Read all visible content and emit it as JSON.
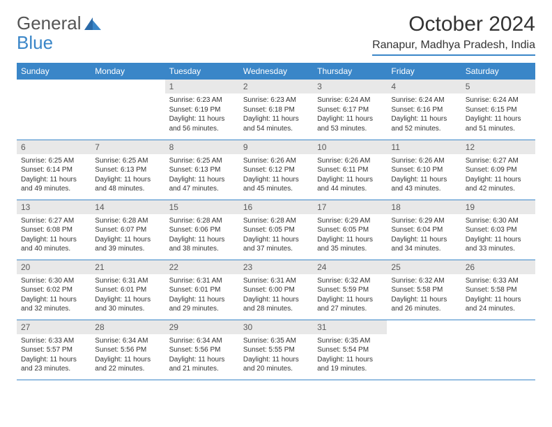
{
  "brand": {
    "part1": "General",
    "part2": "Blue"
  },
  "title": "October 2024",
  "location": "Ranapur, Madhya Pradesh, India",
  "colors": {
    "accent": "#3a86c8",
    "header_bg": "#3a86c8",
    "daynum_bg": "#e8e8e8",
    "text": "#333333"
  },
  "weekdays": [
    "Sunday",
    "Monday",
    "Tuesday",
    "Wednesday",
    "Thursday",
    "Friday",
    "Saturday"
  ],
  "weeks": [
    [
      null,
      null,
      {
        "n": "1",
        "sr": "6:23 AM",
        "ss": "6:19 PM",
        "dl": "11 hours and 56 minutes."
      },
      {
        "n": "2",
        "sr": "6:23 AM",
        "ss": "6:18 PM",
        "dl": "11 hours and 54 minutes."
      },
      {
        "n": "3",
        "sr": "6:24 AM",
        "ss": "6:17 PM",
        "dl": "11 hours and 53 minutes."
      },
      {
        "n": "4",
        "sr": "6:24 AM",
        "ss": "6:16 PM",
        "dl": "11 hours and 52 minutes."
      },
      {
        "n": "5",
        "sr": "6:24 AM",
        "ss": "6:15 PM",
        "dl": "11 hours and 51 minutes."
      }
    ],
    [
      {
        "n": "6",
        "sr": "6:25 AM",
        "ss": "6:14 PM",
        "dl": "11 hours and 49 minutes."
      },
      {
        "n": "7",
        "sr": "6:25 AM",
        "ss": "6:13 PM",
        "dl": "11 hours and 48 minutes."
      },
      {
        "n": "8",
        "sr": "6:25 AM",
        "ss": "6:13 PM",
        "dl": "11 hours and 47 minutes."
      },
      {
        "n": "9",
        "sr": "6:26 AM",
        "ss": "6:12 PM",
        "dl": "11 hours and 45 minutes."
      },
      {
        "n": "10",
        "sr": "6:26 AM",
        "ss": "6:11 PM",
        "dl": "11 hours and 44 minutes."
      },
      {
        "n": "11",
        "sr": "6:26 AM",
        "ss": "6:10 PM",
        "dl": "11 hours and 43 minutes."
      },
      {
        "n": "12",
        "sr": "6:27 AM",
        "ss": "6:09 PM",
        "dl": "11 hours and 42 minutes."
      }
    ],
    [
      {
        "n": "13",
        "sr": "6:27 AM",
        "ss": "6:08 PM",
        "dl": "11 hours and 40 minutes."
      },
      {
        "n": "14",
        "sr": "6:28 AM",
        "ss": "6:07 PM",
        "dl": "11 hours and 39 minutes."
      },
      {
        "n": "15",
        "sr": "6:28 AM",
        "ss": "6:06 PM",
        "dl": "11 hours and 38 minutes."
      },
      {
        "n": "16",
        "sr": "6:28 AM",
        "ss": "6:05 PM",
        "dl": "11 hours and 37 minutes."
      },
      {
        "n": "17",
        "sr": "6:29 AM",
        "ss": "6:05 PM",
        "dl": "11 hours and 35 minutes."
      },
      {
        "n": "18",
        "sr": "6:29 AM",
        "ss": "6:04 PM",
        "dl": "11 hours and 34 minutes."
      },
      {
        "n": "19",
        "sr": "6:30 AM",
        "ss": "6:03 PM",
        "dl": "11 hours and 33 minutes."
      }
    ],
    [
      {
        "n": "20",
        "sr": "6:30 AM",
        "ss": "6:02 PM",
        "dl": "11 hours and 32 minutes."
      },
      {
        "n": "21",
        "sr": "6:31 AM",
        "ss": "6:01 PM",
        "dl": "11 hours and 30 minutes."
      },
      {
        "n": "22",
        "sr": "6:31 AM",
        "ss": "6:01 PM",
        "dl": "11 hours and 29 minutes."
      },
      {
        "n": "23",
        "sr": "6:31 AM",
        "ss": "6:00 PM",
        "dl": "11 hours and 28 minutes."
      },
      {
        "n": "24",
        "sr": "6:32 AM",
        "ss": "5:59 PM",
        "dl": "11 hours and 27 minutes."
      },
      {
        "n": "25",
        "sr": "6:32 AM",
        "ss": "5:58 PM",
        "dl": "11 hours and 26 minutes."
      },
      {
        "n": "26",
        "sr": "6:33 AM",
        "ss": "5:58 PM",
        "dl": "11 hours and 24 minutes."
      }
    ],
    [
      {
        "n": "27",
        "sr": "6:33 AM",
        "ss": "5:57 PM",
        "dl": "11 hours and 23 minutes."
      },
      {
        "n": "28",
        "sr": "6:34 AM",
        "ss": "5:56 PM",
        "dl": "11 hours and 22 minutes."
      },
      {
        "n": "29",
        "sr": "6:34 AM",
        "ss": "5:56 PM",
        "dl": "11 hours and 21 minutes."
      },
      {
        "n": "30",
        "sr": "6:35 AM",
        "ss": "5:55 PM",
        "dl": "11 hours and 20 minutes."
      },
      {
        "n": "31",
        "sr": "6:35 AM",
        "ss": "5:54 PM",
        "dl": "11 hours and 19 minutes."
      },
      null,
      null
    ]
  ],
  "labels": {
    "sunrise": "Sunrise:",
    "sunset": "Sunset:",
    "daylight": "Daylight:"
  }
}
